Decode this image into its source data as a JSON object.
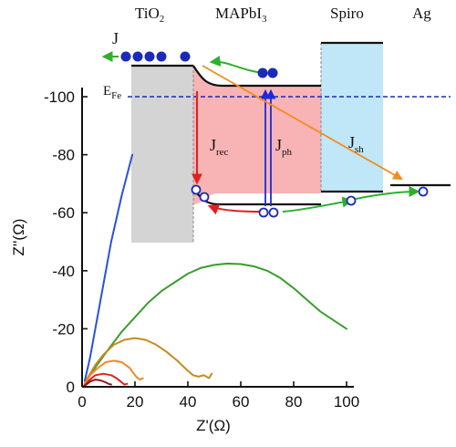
{
  "chart_data": {
    "type": "line",
    "title": "",
    "xlabel": "Z'(Ω)",
    "ylabel": "Z''(Ω)",
    "xlim": [
      0,
      100
    ],
    "ylim": [
      0,
      -115
    ],
    "x_ticks": [
      0,
      20,
      40,
      60,
      80,
      100
    ],
    "y_ticks": [
      0,
      -20,
      -40,
      -60,
      -80,
      -100
    ],
    "x_tick_labels": [
      "0",
      "20",
      "40",
      "60",
      "80",
      "100"
    ],
    "y_tick_labels": [
      "0",
      "-20",
      "-40",
      "-60",
      "-80",
      "-100"
    ],
    "grid": false,
    "legend": "none",
    "series": [
      {
        "color": "#2a52d6",
        "x": [
          1,
          3,
          5,
          7,
          9,
          11,
          13,
          15,
          17,
          19
        ],
        "y": [
          -2,
          -10,
          -20,
          -30,
          -40,
          -50,
          -58,
          -66,
          -73,
          -80
        ]
      },
      {
        "color": "#3a9d2e",
        "x": [
          1,
          3,
          6,
          10,
          15,
          20,
          25,
          30,
          35,
          40,
          45,
          50,
          55,
          60,
          65,
          70,
          75,
          80,
          85,
          90,
          95,
          100
        ],
        "y": [
          -1,
          -4,
          -8,
          -13,
          -19,
          -24,
          -29,
          -33,
          -36,
          -39,
          -41,
          -42,
          -42.5,
          -42.3,
          -41.5,
          -40,
          -37.5,
          -34,
          -30,
          -26,
          -23,
          -20
        ]
      },
      {
        "color": "#c88a1e",
        "x": [
          0.5,
          2,
          5,
          8,
          12,
          16,
          20,
          24,
          28,
          32,
          36,
          40,
          42,
          44,
          46,
          48,
          49
        ],
        "y": [
          0,
          -3,
          -7.5,
          -11,
          -14.5,
          -16.2,
          -16.8,
          -16.2,
          -14.5,
          -12,
          -9,
          -5.5,
          -4,
          -3.5,
          -4,
          -3,
          -4.5
        ]
      },
      {
        "color": "#f08828",
        "x": [
          0.5,
          3,
          6,
          9,
          12,
          15,
          18,
          20,
          21,
          22,
          23
        ],
        "y": [
          0,
          -4,
          -6.5,
          -8.5,
          -9,
          -8.5,
          -6.5,
          -4,
          -3,
          -2.5,
          -3
        ]
      },
      {
        "color": "#e02020",
        "x": [
          0.5,
          3,
          5,
          8,
          11,
          13,
          15,
          16,
          17
        ],
        "y": [
          0,
          -2.5,
          -4,
          -4.5,
          -4,
          -3,
          -1.5,
          -0.8,
          -1
        ]
      },
      {
        "color": "#8b1a1a",
        "x": [
          0.5,
          3,
          5,
          7,
          9,
          10,
          11
        ],
        "y": [
          0,
          -1.8,
          -2.5,
          -2.2,
          -1.5,
          -1,
          -0.8
        ]
      }
    ]
  },
  "diagram": {
    "layers": [
      {
        "id": "tio2",
        "label": "TiO",
        "sub": "2",
        "color": "#d4d4d4"
      },
      {
        "id": "mapbi",
        "label": "MAPbI",
        "sub": "3",
        "color": "#f8b3b5"
      },
      {
        "id": "spiro",
        "label": "Spiro",
        "sub": "",
        "color": "#bfe7f7"
      },
      {
        "id": "ag",
        "label": "Ag",
        "sub": ""
      }
    ],
    "fermi": {
      "label": "E",
      "sub": "Fe"
    },
    "currents": {
      "j": {
        "label": "J",
        "sub": ""
      },
      "jrec": {
        "label": "J",
        "sub": "rec"
      },
      "jph": {
        "label": "J",
        "sub": "ph"
      },
      "jsh": {
        "label": "J",
        "sub": "sh"
      }
    },
    "colors": {
      "electron": "#1a2bb8",
      "green_path": "#2db02d",
      "red_path": "#e02020",
      "orange_path": "#f28c1c",
      "blue_path": "#1a2bdd",
      "fermi": "#1a2bb8"
    }
  }
}
